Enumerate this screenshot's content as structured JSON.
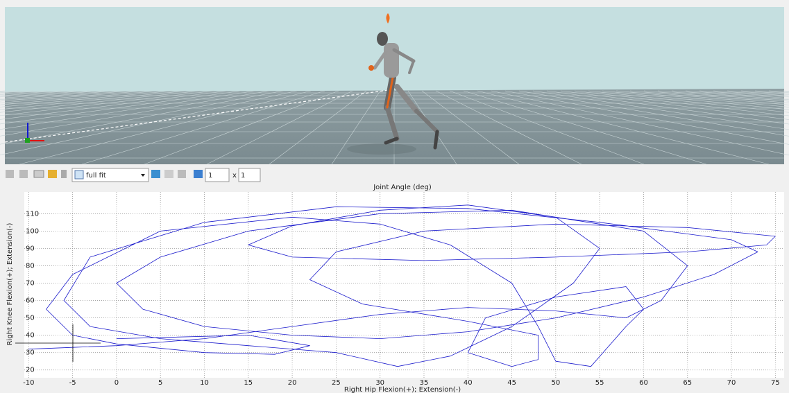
{
  "toolbar": {
    "fit_mode": "full fit",
    "rows": "1",
    "times": "x",
    "cols": "1"
  },
  "chart_data": {
    "type": "line",
    "title": "Joint Angle (deg)",
    "x_label": "Right Hip Flexion(+); Extension(-)",
    "y_label": "Right Knee Flexion(+); Extension(-)",
    "color": "#1a1acc",
    "x": [
      -10,
      -5,
      0,
      10,
      20,
      30,
      40,
      50,
      58,
      62,
      65,
      60,
      45,
      30,
      15,
      5,
      0,
      3,
      10,
      20,
      30,
      40,
      50,
      60,
      68,
      73,
      70,
      55,
      40,
      25,
      10,
      -3,
      -6,
      -3,
      5,
      15,
      25,
      32,
      38,
      45,
      52,
      55,
      50,
      40,
      30,
      20,
      15,
      20,
      35,
      50,
      65,
      74,
      75,
      65,
      50,
      35,
      25,
      22,
      28,
      40,
      48,
      48,
      45,
      40,
      42,
      50,
      58,
      60,
      58,
      54,
      50,
      48,
      45,
      38,
      30,
      20,
      5,
      -5,
      -8,
      -5,
      0,
      10,
      18,
      22,
      15,
      0
    ],
    "values": [
      32,
      33,
      34,
      38,
      45,
      52,
      56,
      54,
      50,
      60,
      80,
      100,
      112,
      110,
      100,
      85,
      70,
      55,
      45,
      40,
      38,
      42,
      50,
      62,
      75,
      88,
      95,
      105,
      113,
      114,
      105,
      85,
      60,
      45,
      38,
      34,
      30,
      22,
      28,
      45,
      70,
      90,
      108,
      115,
      112,
      103,
      92,
      85,
      83,
      85,
      88,
      92,
      97,
      102,
      104,
      100,
      88,
      72,
      58,
      48,
      40,
      26,
      22,
      30,
      50,
      62,
      68,
      55,
      45,
      22,
      25,
      45,
      70,
      92,
      104,
      108,
      100,
      75,
      55,
      40,
      35,
      30,
      29,
      34,
      40,
      38
    ],
    "xlim": [
      -10.5,
      76
    ],
    "ylim": [
      15.5,
      122.5
    ],
    "xticks": [
      -10,
      -5,
      0,
      5,
      10,
      15,
      20,
      25,
      30,
      35,
      40,
      45,
      50,
      55,
      60,
      65,
      70,
      75
    ],
    "yticks": [
      20,
      30,
      40,
      50,
      60,
      70,
      80,
      90,
      100,
      110
    ],
    "grid": true
  }
}
